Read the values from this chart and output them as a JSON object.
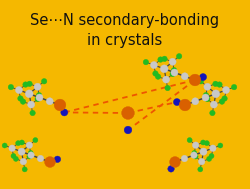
{
  "background_color": "#F5B800",
  "title_line1": "Se⋯N secondary-bonding",
  "title_line2": "in crystals",
  "title_color": "#111111",
  "title_fontsize": 10.5,
  "fig_width": 2.51,
  "fig_height": 1.89,
  "dpi": 100,
  "se_color": "#D96000",
  "n_color": "#1515BB",
  "c_color": "#C8C8C8",
  "f_color": "#22BB22",
  "bond_color": "#444444",
  "se_n_bond_color": "#EE5500"
}
